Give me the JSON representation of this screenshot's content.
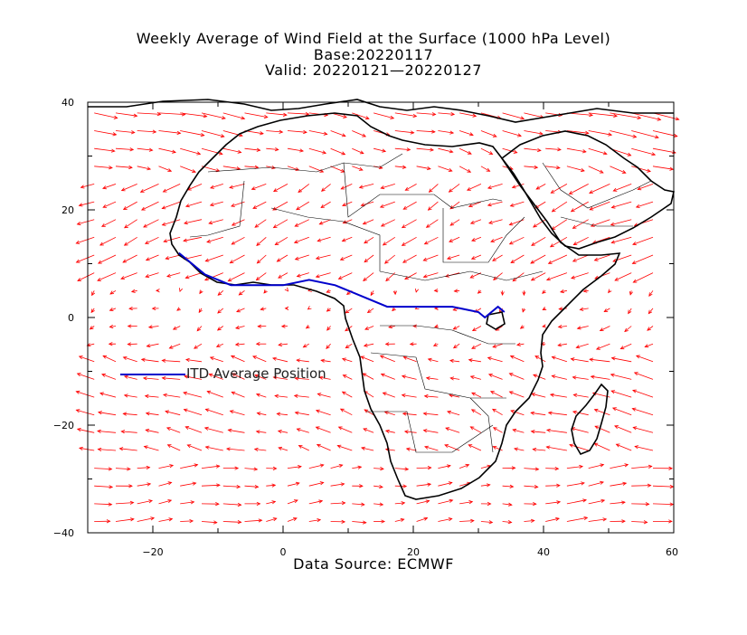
{
  "title": {
    "line1": "Weekly Average of Wind Field at the Surface (1000 hPa Level)",
    "line2": "Base:20220117",
    "line3": "Valid: 20220121—20220127"
  },
  "legend": {
    "label": "ITD Average Position",
    "color": "#0000cc"
  },
  "source": "Data Source: ECMWF",
  "colors": {
    "vector": "#ff0000",
    "itd": "#0000cc",
    "coast": "#000000"
  },
  "axes": {
    "x_ticks": [
      "−20",
      "0",
      "20",
      "40",
      "60"
    ],
    "y_ticks": [
      "40",
      "20",
      "0",
      "−20",
      "−40"
    ]
  },
  "chart_data": {
    "type": "map",
    "lon_range": [
      -30,
      60
    ],
    "lat_range": [
      -40,
      40
    ],
    "itd_line": [
      [
        -16,
        12
      ],
      [
        -14,
        10
      ],
      [
        -12,
        8
      ],
      [
        -8,
        6
      ],
      [
        -4,
        6
      ],
      [
        0,
        6
      ],
      [
        4,
        7
      ],
      [
        8,
        6
      ],
      [
        12,
        4
      ],
      [
        16,
        2
      ],
      [
        20,
        2
      ],
      [
        26,
        2
      ],
      [
        30,
        1
      ],
      [
        31,
        0
      ],
      [
        32,
        1
      ],
      [
        33,
        2
      ],
      [
        34,
        1
      ]
    ]
  }
}
